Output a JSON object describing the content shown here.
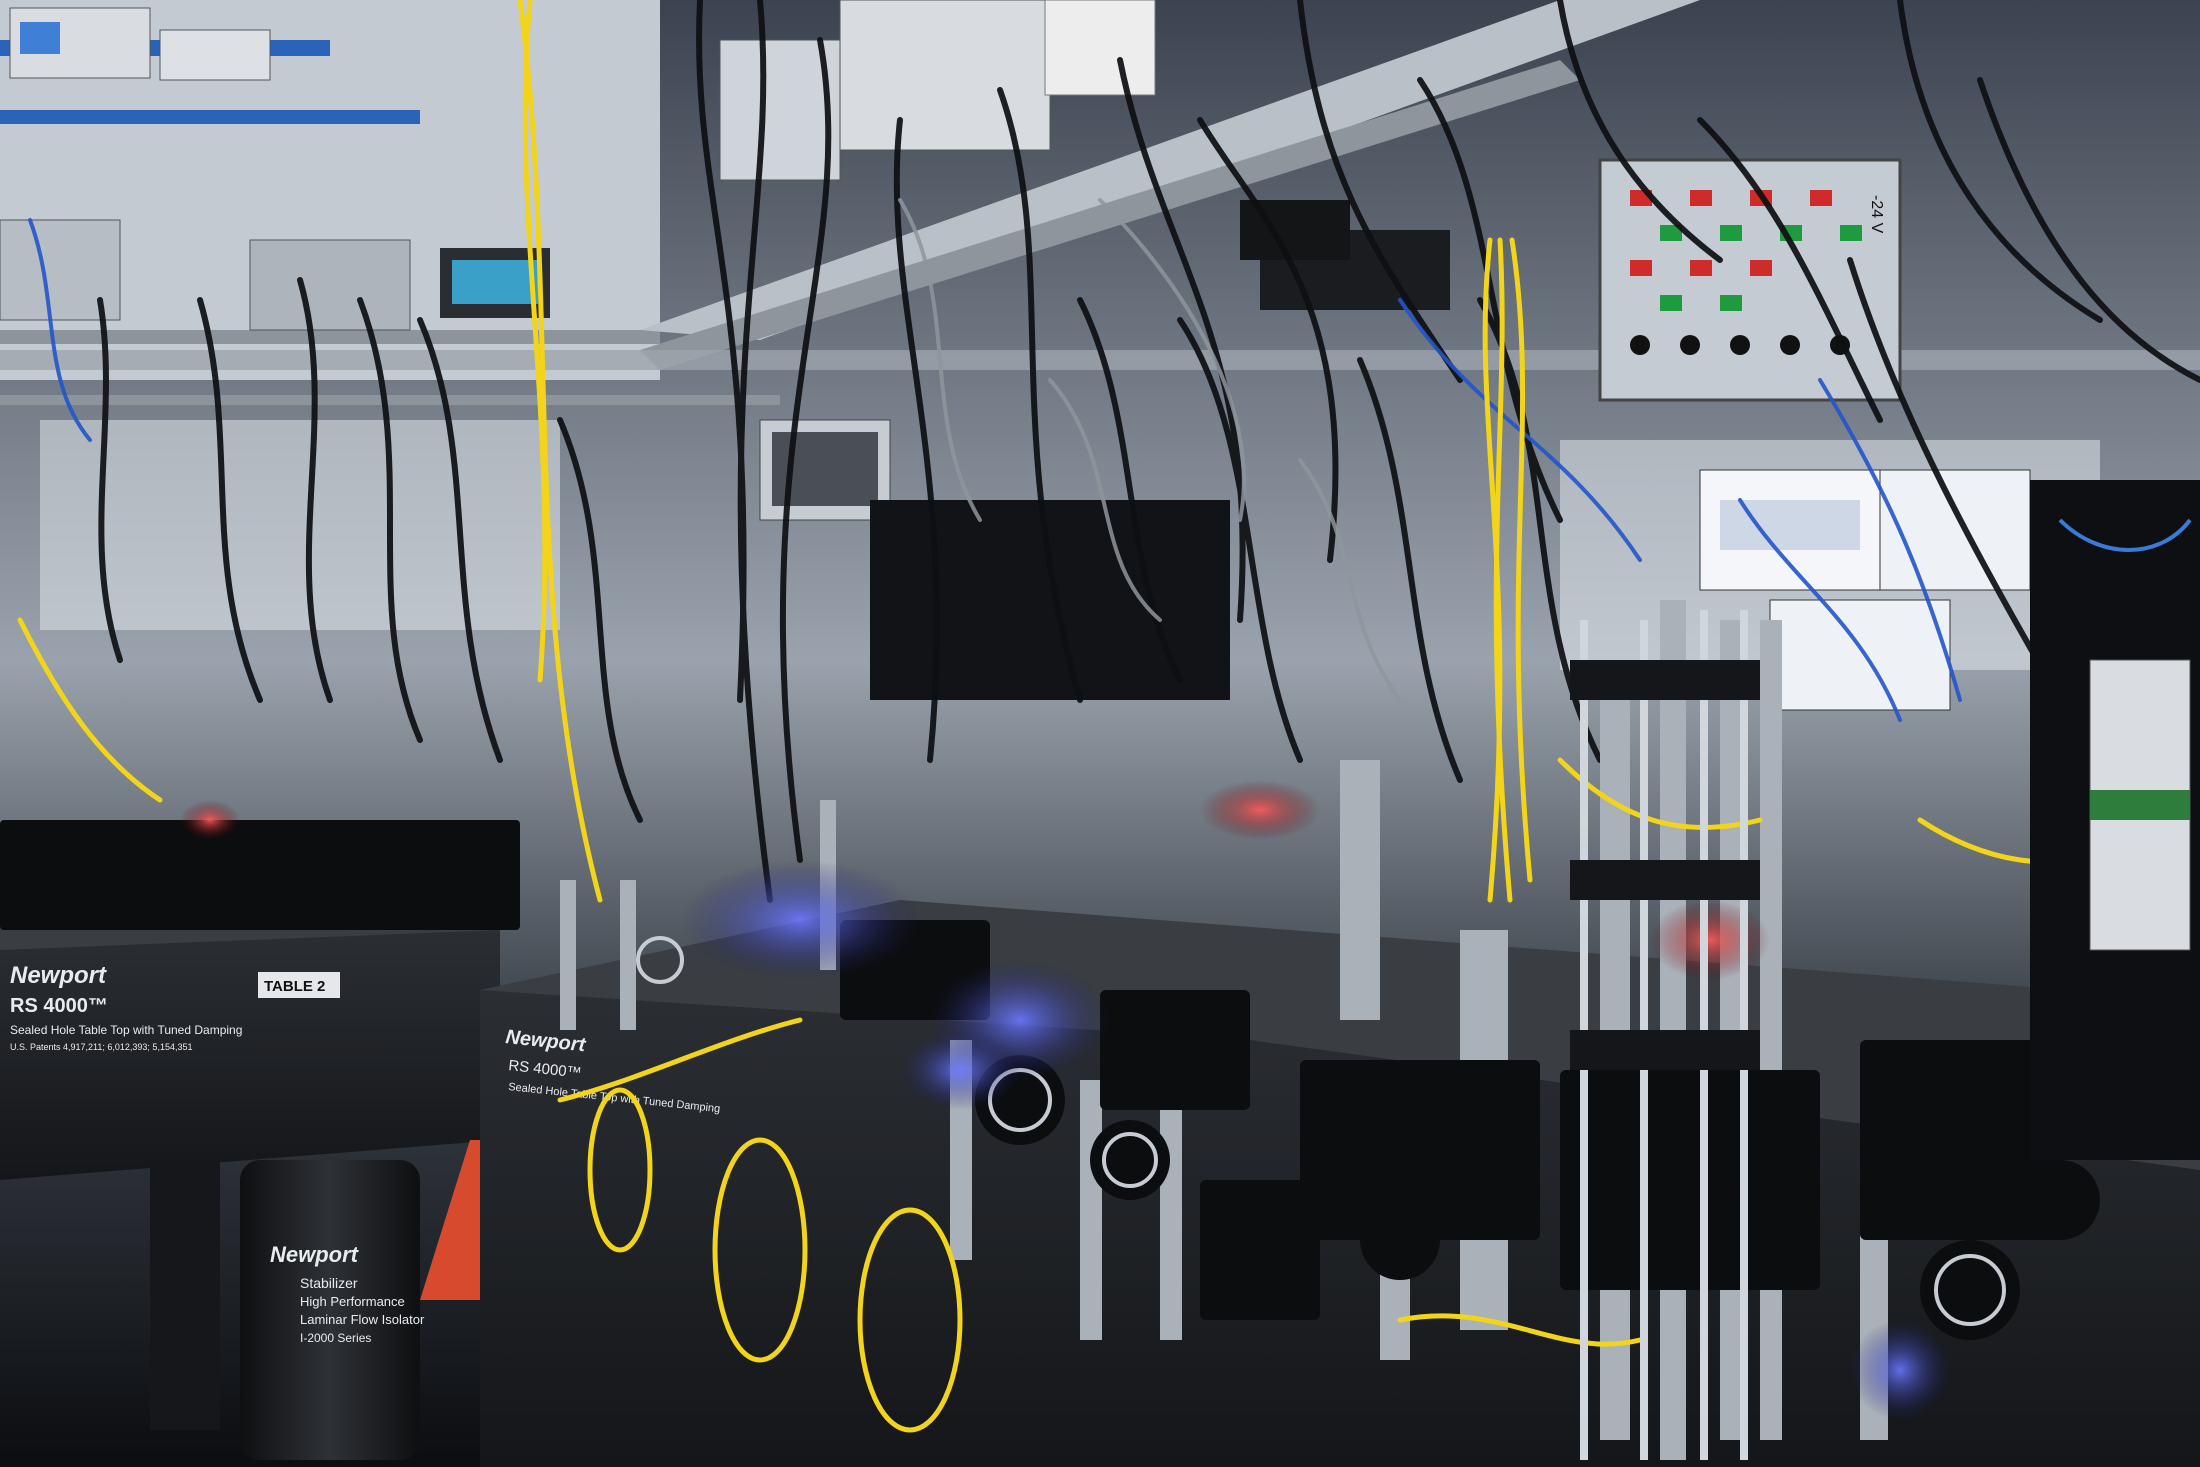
{
  "photo": {
    "subject": "Optics laboratory with laser tables, cabled electronics racks and fiber patch cords",
    "palette": {
      "background": "#0d1015",
      "table": "#1f2226",
      "rack": "#c9cfd6",
      "fiber": "#f2d51a",
      "laser_blue": "#3a4cff",
      "laser_red": "#ff2a2a",
      "shelf_blue": "#2a63b8"
    }
  },
  "labels": {
    "table_left_brand": "Newport",
    "table_left_model": "RS 4000™",
    "table_left_desc1": "Sealed Hole Table Top with Tuned Damping",
    "table_left_desc2": "U.S. Patents 4,917,211; 6,012,393; 5,154,351",
    "table_left_tag": "TABLE 2",
    "table_right_brand": "Newport",
    "table_right_model": "RS 4000™",
    "table_right_desc": "Sealed Hole Table Top with Tuned Damping",
    "leg_brand": "Newport",
    "leg_line1": "Stabilizer",
    "leg_line2": "High Performance",
    "leg_line3": "Laminar Flow Isolator",
    "leg_line4": "I-2000 Series",
    "panel_voltage": "-24 V"
  }
}
